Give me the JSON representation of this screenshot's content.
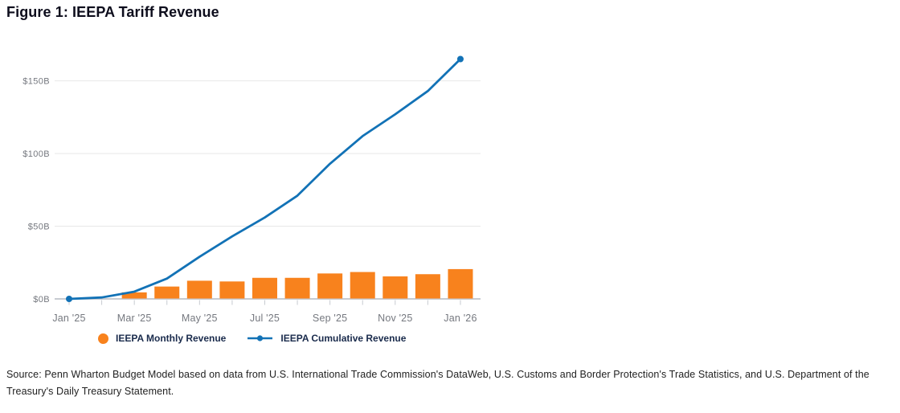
{
  "title": "Figure 1: IEEPA Tariff Revenue",
  "source_note": "Source: Penn Wharton Budget Model based on data from U.S. International Trade Commission's DataWeb, U.S. Customs and Border Protection's Trade Statistics, and U.S. Department of the Treasury's Daily Treasury Statement.",
  "colors": {
    "bar_orange": "#F8821D",
    "line_blue": "#1272B6",
    "title_text": "#0D0D1C",
    "legend_text": "#1A2B4C",
    "axis_label": "#75787F",
    "gridline": "#E8E8E8",
    "axis_line": "#C7CBD1",
    "source_text": "#222222",
    "background": "#FFFFFF"
  },
  "legend": {
    "items": [
      {
        "id": "monthly",
        "label": "IEEPA Monthly Revenue",
        "marker": "circle",
        "color": "#F8821D"
      },
      {
        "id": "cumulative",
        "label": "IEEPA Cumulative Revenue",
        "marker": "line-dot",
        "color": "#1272B6"
      }
    ]
  },
  "chart_data": {
    "type": "bar",
    "subtype": "bar + line combo",
    "units": "billions of US dollars",
    "x_categories": [
      "Jan '25",
      "Feb '25",
      "Mar '25",
      "Apr '25",
      "May '25",
      "Jun '25",
      "Jul '25",
      "Aug '25",
      "Sep '25",
      "Oct '25",
      "Nov '25",
      "Dec '25",
      "Jan '26"
    ],
    "x_axis_tick_labels": [
      "Jan '25",
      "Mar '25",
      "May '25",
      "Jul '25",
      "Sep '25",
      "Nov '25",
      "Jan '26"
    ],
    "y_axis_tick_labels": [
      "$0B",
      "$50B",
      "$100B",
      "$150B"
    ],
    "y_axis_ticks_billions": [
      0,
      50,
      100,
      150
    ],
    "ylim_billions": [
      0,
      170
    ],
    "grid": "horizontal gridlines only",
    "legend_position": "bottom",
    "series": [
      {
        "name": "IEEPA Monthly Revenue",
        "type": "bar",
        "color": "#F8821D",
        "values_billions": [
          0,
          0,
          4.5,
          8.5,
          12.5,
          12,
          14.5,
          14.5,
          17.5,
          18.5,
          15.5,
          17,
          20.5
        ]
      },
      {
        "name": "IEEPA Cumulative Revenue",
        "type": "line",
        "color": "#1272B6",
        "markers": "dots at first and last points only",
        "values_billions": [
          0,
          1,
          5,
          14,
          29,
          43,
          56,
          71,
          93,
          112,
          127,
          143,
          165
        ]
      }
    ]
  }
}
